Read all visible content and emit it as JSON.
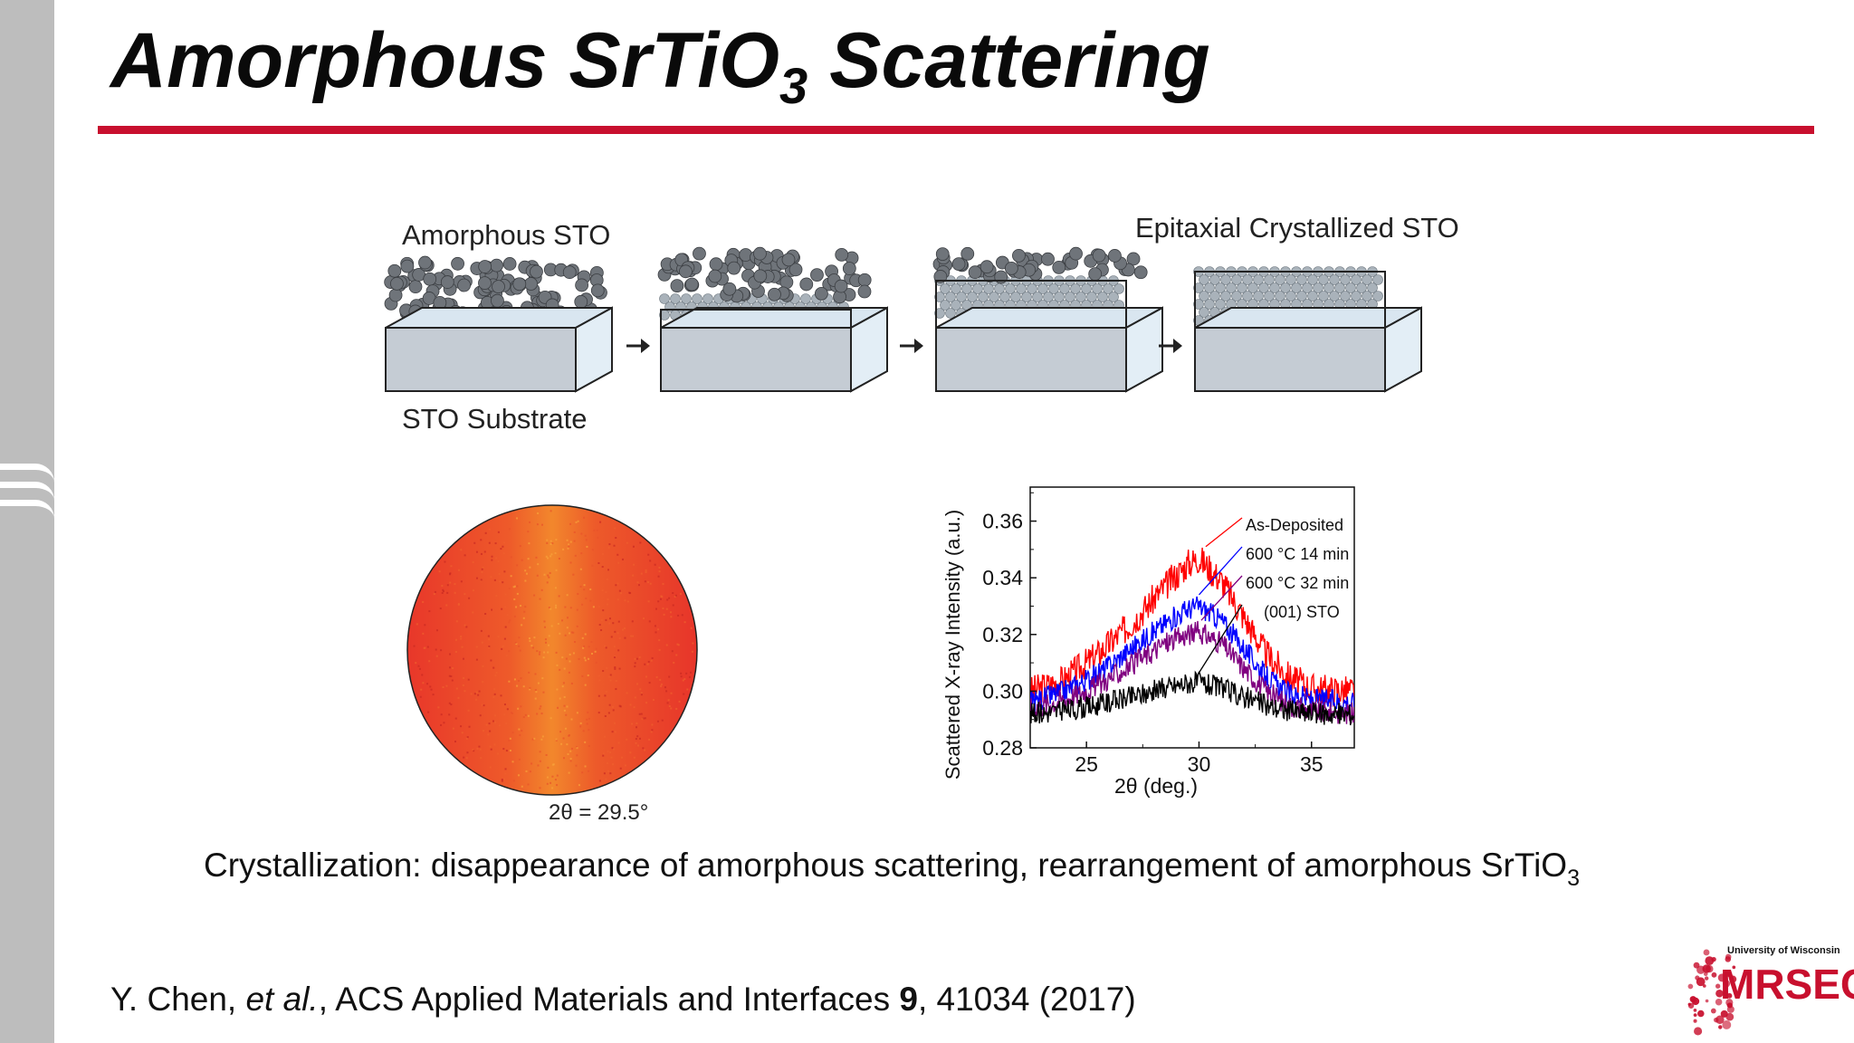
{
  "slide": {
    "title_main": "Amorphous SrTiO",
    "title_sub": "3",
    "title_tail": " Scattering",
    "accent_color": "#c8102e"
  },
  "schematic": {
    "label_amorphous": "Amorphous STO",
    "label_substrate": "STO Substrate",
    "label_epitaxial": "Epitaxial Crystallized STO"
  },
  "detector_image": {
    "label": "2θ = 29.5°"
  },
  "chart_data": {
    "type": "line",
    "xlabel": "2θ (deg.)",
    "ylabel": "Scattered X-ray Intensity (a.u.)",
    "xlim": [
      22.5,
      36.9
    ],
    "ylim": [
      0.28,
      0.372
    ],
    "xticks": [
      25,
      30,
      35
    ],
    "yticks": [
      0.28,
      0.3,
      0.32,
      0.34,
      0.36
    ],
    "ytick_labels": [
      "0.28",
      "0.30",
      "0.32",
      "0.34",
      "0.36"
    ],
    "legend_placement": "top-right",
    "series": [
      {
        "name": "As-Deposited",
        "color": "#ff0000",
        "x": [
          22.5,
          24,
          25.5,
          27,
          28.5,
          29.5,
          30,
          31,
          32,
          33,
          34,
          35,
          36.9
        ],
        "values": [
          0.3,
          0.304,
          0.313,
          0.324,
          0.337,
          0.345,
          0.347,
          0.339,
          0.326,
          0.313,
          0.305,
          0.301,
          0.3
        ]
      },
      {
        "name": "600 °C 14 min",
        "color": "#0000ff",
        "x": [
          22.5,
          24,
          25.5,
          27,
          28.5,
          29.5,
          30,
          31,
          32,
          33,
          34,
          35,
          36.9
        ],
        "values": [
          0.296,
          0.3,
          0.306,
          0.315,
          0.324,
          0.329,
          0.33,
          0.325,
          0.315,
          0.305,
          0.299,
          0.297,
          0.296
        ]
      },
      {
        "name": "600 °C 32 min",
        "color": "#800080",
        "x": [
          22.5,
          24,
          25.5,
          27,
          28.5,
          29.5,
          30,
          31,
          32,
          33,
          34,
          35,
          36.9
        ],
        "values": [
          0.294,
          0.297,
          0.302,
          0.309,
          0.317,
          0.32,
          0.321,
          0.317,
          0.308,
          0.3,
          0.295,
          0.293,
          0.292
        ]
      },
      {
        "name": "(001) STO",
        "color": "#000000",
        "x": [
          22.5,
          24,
          25.5,
          27,
          28.5,
          29.5,
          30,
          31,
          32,
          33,
          34,
          35,
          36.9
        ],
        "values": [
          0.292,
          0.293,
          0.295,
          0.298,
          0.301,
          0.303,
          0.303,
          0.301,
          0.298,
          0.295,
          0.293,
          0.292,
          0.292
        ]
      }
    ]
  },
  "caption": {
    "text": "Crystallization: disappearance of amorphous scattering, rearrangement of amorphous SrTiO",
    "sub": "3"
  },
  "citation": {
    "authors": "Y. Chen, ",
    "etal": "et al.",
    "journal": ",  ACS Applied Materials and Interfaces ",
    "volume": "9",
    "rest": ", 41034 (2017)"
  },
  "logo": {
    "small_text": "University of Wisconsin",
    "big_text": "MRSEC"
  }
}
